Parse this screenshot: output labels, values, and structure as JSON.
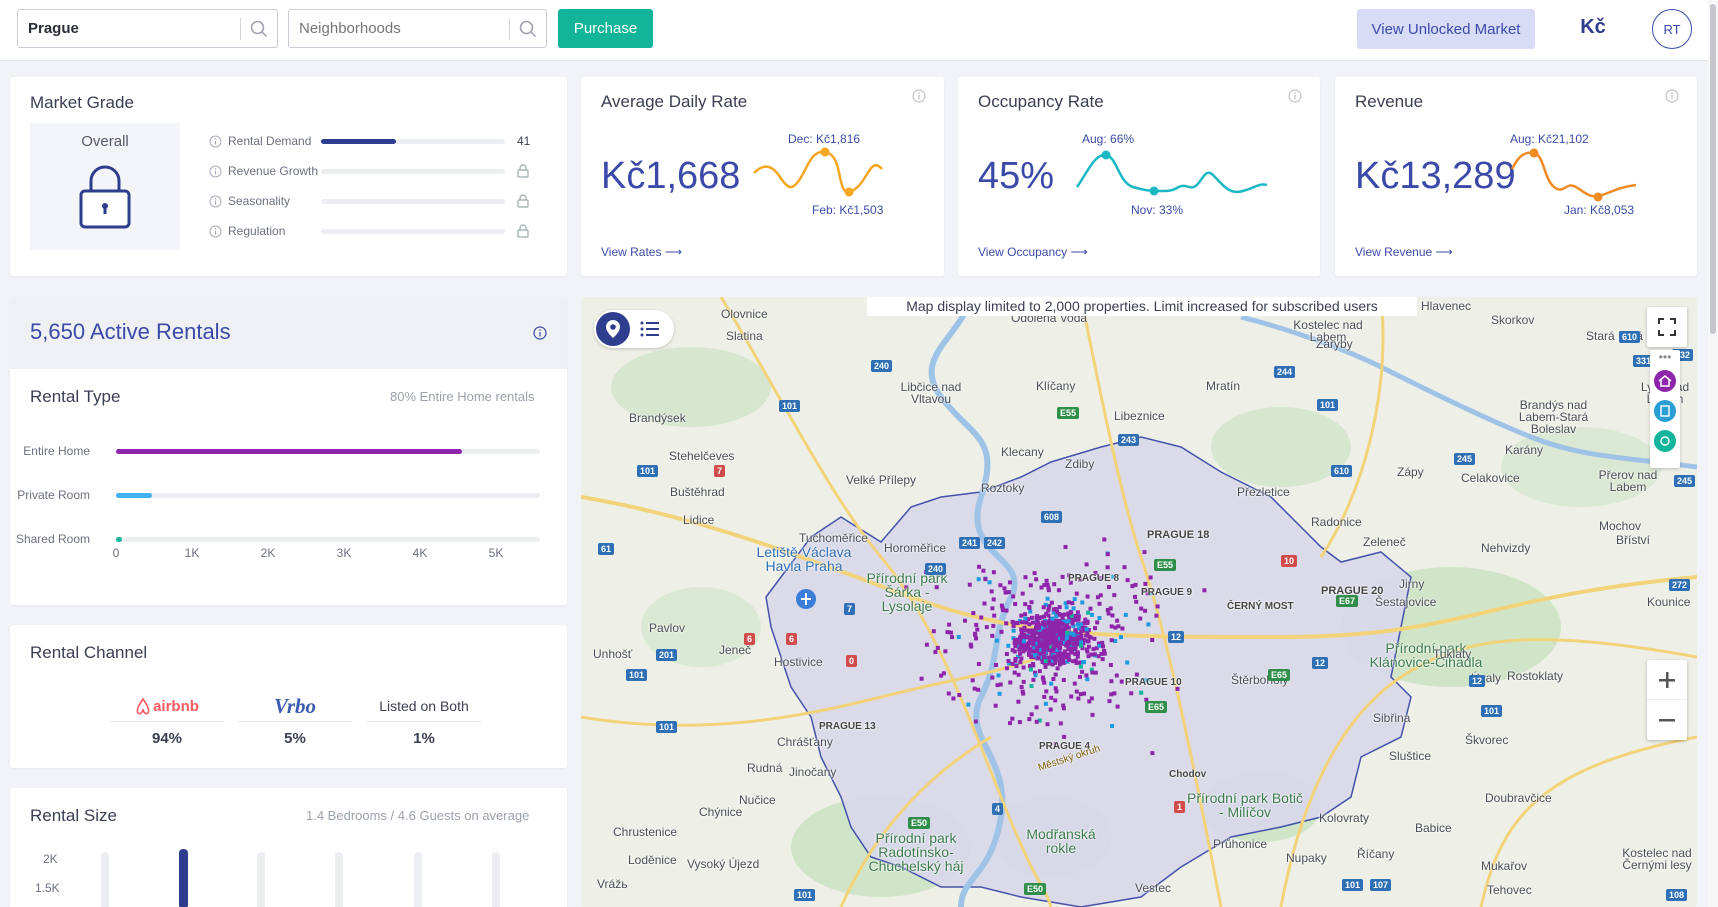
{
  "header": {
    "city_value": "Prague",
    "neighborhoods_placeholder": "Neighborhoods",
    "purchase_label": "Purchase",
    "unlocked_label": "View Unlocked Market",
    "currency_symbol": "Kč",
    "user_initials": "RT"
  },
  "market_grade": {
    "title": "Market Grade",
    "overall_label": "Overall",
    "metrics": [
      {
        "label": "Rental Demand",
        "value": "41",
        "fill_fraction": 0.41,
        "locked": false
      },
      {
        "label": "Revenue Growth",
        "locked": true
      },
      {
        "label": "Seasonality",
        "locked": true
      },
      {
        "label": "Regulation",
        "locked": true
      }
    ]
  },
  "kpis": {
    "adr": {
      "title": "Average Daily Rate",
      "value": "Kč1,668",
      "high_label": "Dec: Kč1,816",
      "low_label": "Feb: Kč1,503",
      "link": "View Rates",
      "color": "#f5a623"
    },
    "occupancy": {
      "title": "Occupancy Rate",
      "value": "45%",
      "high_label": "Aug: 66%",
      "low_label": "Nov: 33%",
      "link": "View Occupancy",
      "color": "#19b8c4"
    },
    "revenue": {
      "title": "Revenue",
      "value": "Kč13,289",
      "high_label": "Aug: Kč21,102",
      "low_label": "Jan: Kč8,053",
      "link": "View Revenue",
      "color": "#f08a24"
    }
  },
  "active_rentals": {
    "title": "5,650 Active Rentals"
  },
  "rental_type": {
    "title": "Rental Type",
    "note": "80% Entire Home rentals",
    "rows": [
      {
        "label": "Entire Home",
        "value": 4550,
        "color": "#8e24aa"
      },
      {
        "label": "Private Room",
        "value": 480,
        "color": "#42b0f0"
      },
      {
        "label": "Shared Room",
        "value": 30,
        "color": "#12b59a"
      }
    ],
    "axis": [
      "0",
      "1K",
      "2K",
      "3K",
      "4K",
      "5K"
    ],
    "axis_max": 5000
  },
  "rental_channel": {
    "title": "Rental Channel",
    "channels": [
      {
        "name": "airbnb",
        "pct": "94%"
      },
      {
        "name": "Vrbo",
        "pct": "5%"
      },
      {
        "name": "Listed on Both",
        "pct": "1%"
      }
    ]
  },
  "rental_size": {
    "title": "Rental Size",
    "note": "1.4 Bedrooms / 4.6 Guests on average",
    "y_ticks": [
      "2K",
      "1.5K"
    ]
  },
  "map": {
    "note": "Map display limited to 2,000 properties. Limit increased for subscribed users",
    "places": [
      "Olovnice",
      "Slatina",
      "Odolena Voda",
      "Hlavenec",
      "Kostelec nad Labem",
      "Skorkov",
      "Stará Lysá",
      "Záryby",
      "Libčice nad Vltavou",
      "Klíčany",
      "Mratín",
      "Brandýsek",
      "Libeznice",
      "Brandýs nad Labem-Stará Boleslav",
      "Lysá nad Labem",
      "Stehelčeves",
      "Klecany",
      "Zdiby",
      "Karány",
      "Buštěhrad",
      "Velké Přílepy",
      "Roztoky",
      "Přezletice",
      "Zápy",
      "Celakovice",
      "Přerov nad Labem",
      "Lidice",
      "Radonice",
      "Mochov",
      "Tuchoměřice",
      "Horoměřice",
      "PRAGUE 18",
      "Zeleneč",
      "Nehvizdy",
      "Bříství",
      "Letiště Václava Havla Praha",
      "Přírodní park Šárka - Lysolaje",
      "PRAGUE 8",
      "PRAGUE 9",
      "ČERNÝ MOST",
      "PRAGUE 20",
      "Jirny",
      "Šestajovice",
      "Kounice",
      "Pavlov",
      "Jeneč",
      "Unhošť",
      "Hostivice",
      "Přírodní park Klánovice-Cihadla",
      "Tuklaty",
      "Rostoklaty",
      "Úvaly",
      "Sibřina",
      "Štěrboholy",
      "PRAGUE 10",
      "PRAGUE 13",
      "PRAGUE 4",
      "Chrášťany",
      "Jinočany",
      "Rudná",
      "Škvorec",
      "Sluštice",
      "Nučice",
      "Chodov",
      "Přírodní park Botič - Milíčov",
      "Kolovraty",
      "Doubravčice",
      "Babice",
      "Chýnice",
      "Chrustenice",
      "Loděnice",
      "Vysoký Újezd",
      "Přírodní park Radotínsko-Chuchelský háj",
      "Modřanská rokle",
      "Průhonice",
      "Nupaky",
      "Říčany",
      "Mukařov",
      "Kostelec nad Černými lesy",
      "Tehovec",
      "Vrážь",
      "Vestec",
      "Městský okruh"
    ]
  }
}
